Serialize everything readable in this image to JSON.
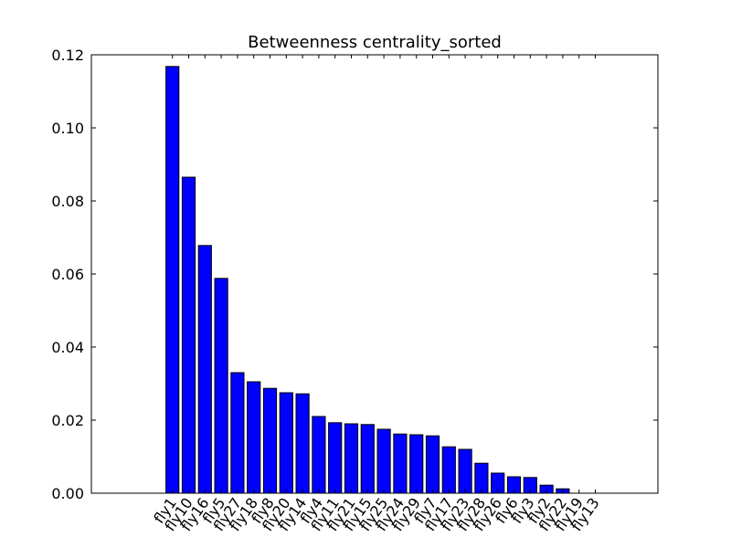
{
  "chart_data": {
    "type": "bar",
    "title": "Betweenness centrality_sorted",
    "xlabel": "",
    "ylabel": "",
    "ylim": [
      0,
      0.12
    ],
    "y_ticks": [
      "0.00",
      "0.02",
      "0.04",
      "0.06",
      "0.08",
      "0.10",
      "0.12"
    ],
    "grid": false,
    "legend": "none",
    "bar_color": "#0000ff",
    "categories": [
      "fly1",
      "fly10",
      "fly16",
      "fly5",
      "fly27",
      "fly18",
      "fly8",
      "fly20",
      "fly14",
      "fly4",
      "fly11",
      "fly21",
      "fly15",
      "fly25",
      "fly24",
      "fly29",
      "fly7",
      "fly17",
      "fly23",
      "fly28",
      "fly26",
      "fly6",
      "fly3",
      "fly2",
      "fly22",
      "fly19",
      "fly13"
    ],
    "values": [
      0.1168,
      0.0865,
      0.0678,
      0.0588,
      0.033,
      0.0305,
      0.0287,
      0.0275,
      0.0272,
      0.021,
      0.0193,
      0.019,
      0.0188,
      0.0175,
      0.0162,
      0.016,
      0.0157,
      0.0127,
      0.012,
      0.0082,
      0.0055,
      0.0045,
      0.0043,
      0.0022,
      0.0012,
      0.0,
      0.0
    ]
  }
}
